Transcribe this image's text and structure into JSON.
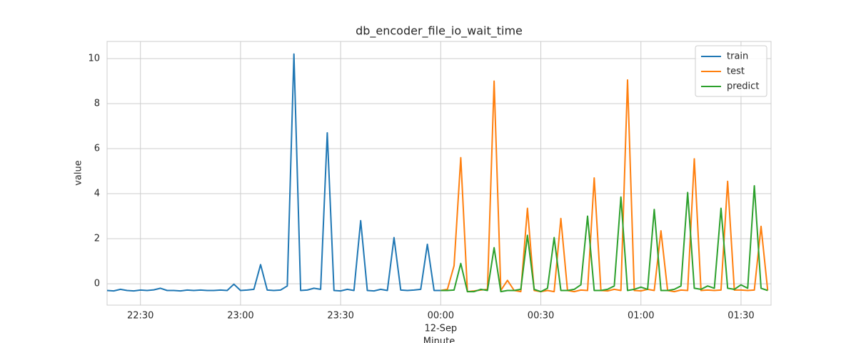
{
  "chart_data": {
    "type": "line",
    "title": "db_encoder_file_io_wait_time",
    "xlabel": "Minute",
    "ylabel": "value",
    "xlim": [
      "22:20",
      "01:39"
    ],
    "xticks": [
      "22:30",
      "23:00",
      "23:30",
      "00:00",
      "00:30",
      "01:00",
      "01:30"
    ],
    "date_label": "12-Sep",
    "date_label_at": "00:00",
    "ylim": [
      -0.95,
      10.76
    ],
    "yticks": [
      0,
      2,
      4,
      6,
      8,
      10
    ],
    "grid": true,
    "legend": "upper right",
    "series": [
      {
        "name": "train",
        "color": "#1f77b4",
        "x": [
          "22:20",
          "22:22",
          "22:24",
          "22:26",
          "22:28",
          "22:30",
          "22:32",
          "22:34",
          "22:36",
          "22:38",
          "22:40",
          "22:42",
          "22:44",
          "22:46",
          "22:48",
          "22:50",
          "22:52",
          "22:54",
          "22:56",
          "22:58",
          "23:00",
          "23:02",
          "23:04",
          "23:06",
          "23:08",
          "23:10",
          "23:12",
          "23:14",
          "23:16",
          "23:18",
          "23:20",
          "23:22",
          "23:24",
          "23:26",
          "23:28",
          "23:30",
          "23:32",
          "23:34",
          "23:36",
          "23:38",
          "23:40",
          "23:42",
          "23:44",
          "23:46",
          "23:48",
          "23:50",
          "23:52",
          "23:54",
          "23:56",
          "23:58",
          "00:00"
        ],
        "values": [
          -0.3,
          -0.32,
          -0.25,
          -0.3,
          -0.32,
          -0.28,
          -0.3,
          -0.27,
          -0.2,
          -0.3,
          -0.3,
          -0.32,
          -0.28,
          -0.3,
          -0.28,
          -0.3,
          -0.3,
          -0.28,
          -0.3,
          -0.02,
          -0.3,
          -0.28,
          -0.25,
          0.85,
          -0.28,
          -0.3,
          -0.28,
          -0.1,
          10.2,
          -0.3,
          -0.28,
          -0.2,
          -0.25,
          6.7,
          -0.3,
          -0.32,
          -0.25,
          -0.3,
          2.8,
          -0.3,
          -0.32,
          -0.25,
          -0.3,
          2.05,
          -0.28,
          -0.3,
          -0.28,
          -0.25,
          1.75,
          -0.3,
          -0.3
        ]
      },
      {
        "name": "test",
        "color": "#ff7f0e",
        "x": [
          "00:00",
          "00:02",
          "00:04",
          "00:06",
          "00:08",
          "00:10",
          "00:12",
          "00:14",
          "00:16",
          "00:18",
          "00:20",
          "00:22",
          "00:24",
          "00:26",
          "00:28",
          "00:30",
          "00:32",
          "00:34",
          "00:36",
          "00:38",
          "00:40",
          "00:42",
          "00:44",
          "00:46",
          "00:48",
          "00:50",
          "00:52",
          "00:54",
          "00:56",
          "00:58",
          "01:00",
          "01:02",
          "01:04",
          "01:06",
          "01:08",
          "01:10",
          "01:12",
          "01:14",
          "01:16",
          "01:18",
          "01:20",
          "01:22",
          "01:24",
          "01:26",
          "01:28",
          "01:30",
          "01:32",
          "01:34",
          "01:36",
          "01:38"
        ],
        "values": [
          -0.3,
          -0.25,
          0.8,
          5.6,
          -0.35,
          -0.32,
          -0.28,
          -0.25,
          9.0,
          -0.3,
          0.15,
          -0.3,
          -0.35,
          3.35,
          -0.3,
          -0.35,
          -0.3,
          -0.35,
          2.9,
          -0.3,
          -0.35,
          -0.28,
          -0.3,
          4.7,
          -0.3,
          -0.32,
          -0.25,
          -0.3,
          9.05,
          -0.3,
          -0.32,
          -0.25,
          -0.3,
          2.35,
          -0.3,
          -0.35,
          -0.28,
          -0.3,
          5.55,
          -0.3,
          -0.28,
          -0.3,
          -0.28,
          4.55,
          -0.28,
          -0.28,
          -0.3,
          -0.28,
          2.55,
          -0.3
        ]
      },
      {
        "name": "predict",
        "color": "#2ca02c",
        "x": [
          "00:00",
          "00:02",
          "00:04",
          "00:06",
          "00:08",
          "00:10",
          "00:12",
          "00:14",
          "00:16",
          "00:18",
          "00:20",
          "00:22",
          "00:24",
          "00:26",
          "00:28",
          "00:30",
          "00:32",
          "00:34",
          "00:36",
          "00:38",
          "00:40",
          "00:42",
          "00:44",
          "00:46",
          "00:48",
          "00:50",
          "00:52",
          "00:54",
          "00:56",
          "00:58",
          "01:00",
          "01:02",
          "01:04",
          "01:06",
          "01:08",
          "01:10",
          "01:12",
          "01:14",
          "01:16",
          "01:18",
          "01:20",
          "01:22",
          "01:24",
          "01:26",
          "01:28",
          "01:30",
          "01:32",
          "01:34",
          "01:36",
          "01:38"
        ],
        "values": [
          -0.3,
          -0.3,
          -0.28,
          0.9,
          -0.35,
          -0.35,
          -0.25,
          -0.3,
          1.6,
          -0.35,
          -0.3,
          -0.3,
          -0.25,
          2.15,
          -0.25,
          -0.35,
          -0.2,
          2.05,
          -0.3,
          -0.3,
          -0.25,
          -0.05,
          3.0,
          -0.3,
          -0.3,
          -0.25,
          -0.1,
          3.85,
          -0.3,
          -0.25,
          -0.15,
          -0.25,
          3.3,
          -0.3,
          -0.3,
          -0.25,
          -0.1,
          4.05,
          -0.2,
          -0.25,
          -0.1,
          -0.2,
          3.35,
          -0.2,
          -0.25,
          -0.05,
          -0.2,
          4.35,
          -0.2,
          -0.3
        ]
      }
    ]
  }
}
